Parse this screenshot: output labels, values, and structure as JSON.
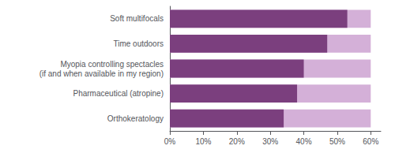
{
  "chart_data": {
    "type": "bar",
    "orientation": "horizontal",
    "categories": [
      "Orthokeratology",
      "Pharmaceutical (atropine)",
      "Myopia controlling spectacles\n(if and when available in my region)",
      "Time outdoors",
      "Soft multifocals"
    ],
    "series": [
      {
        "color": "#d4b0d8",
        "values": [
          60,
          60,
          60,
          60,
          60
        ]
      },
      {
        "color": "#7b3f7e",
        "values": [
          34,
          38,
          40,
          47,
          53
        ]
      }
    ],
    "xlim": [
      0,
      63
    ],
    "xticks": [
      {
        "value": 0,
        "label": "0%"
      },
      {
        "value": 10,
        "label": "10%"
      },
      {
        "value": 20,
        "label": "20%"
      },
      {
        "value": 30,
        "label": "30%"
      },
      {
        "value": 40,
        "label": "40%"
      },
      {
        "value": 50,
        "label": "50%"
      },
      {
        "value": 60,
        "label": "60%"
      }
    ],
    "grid": false
  }
}
